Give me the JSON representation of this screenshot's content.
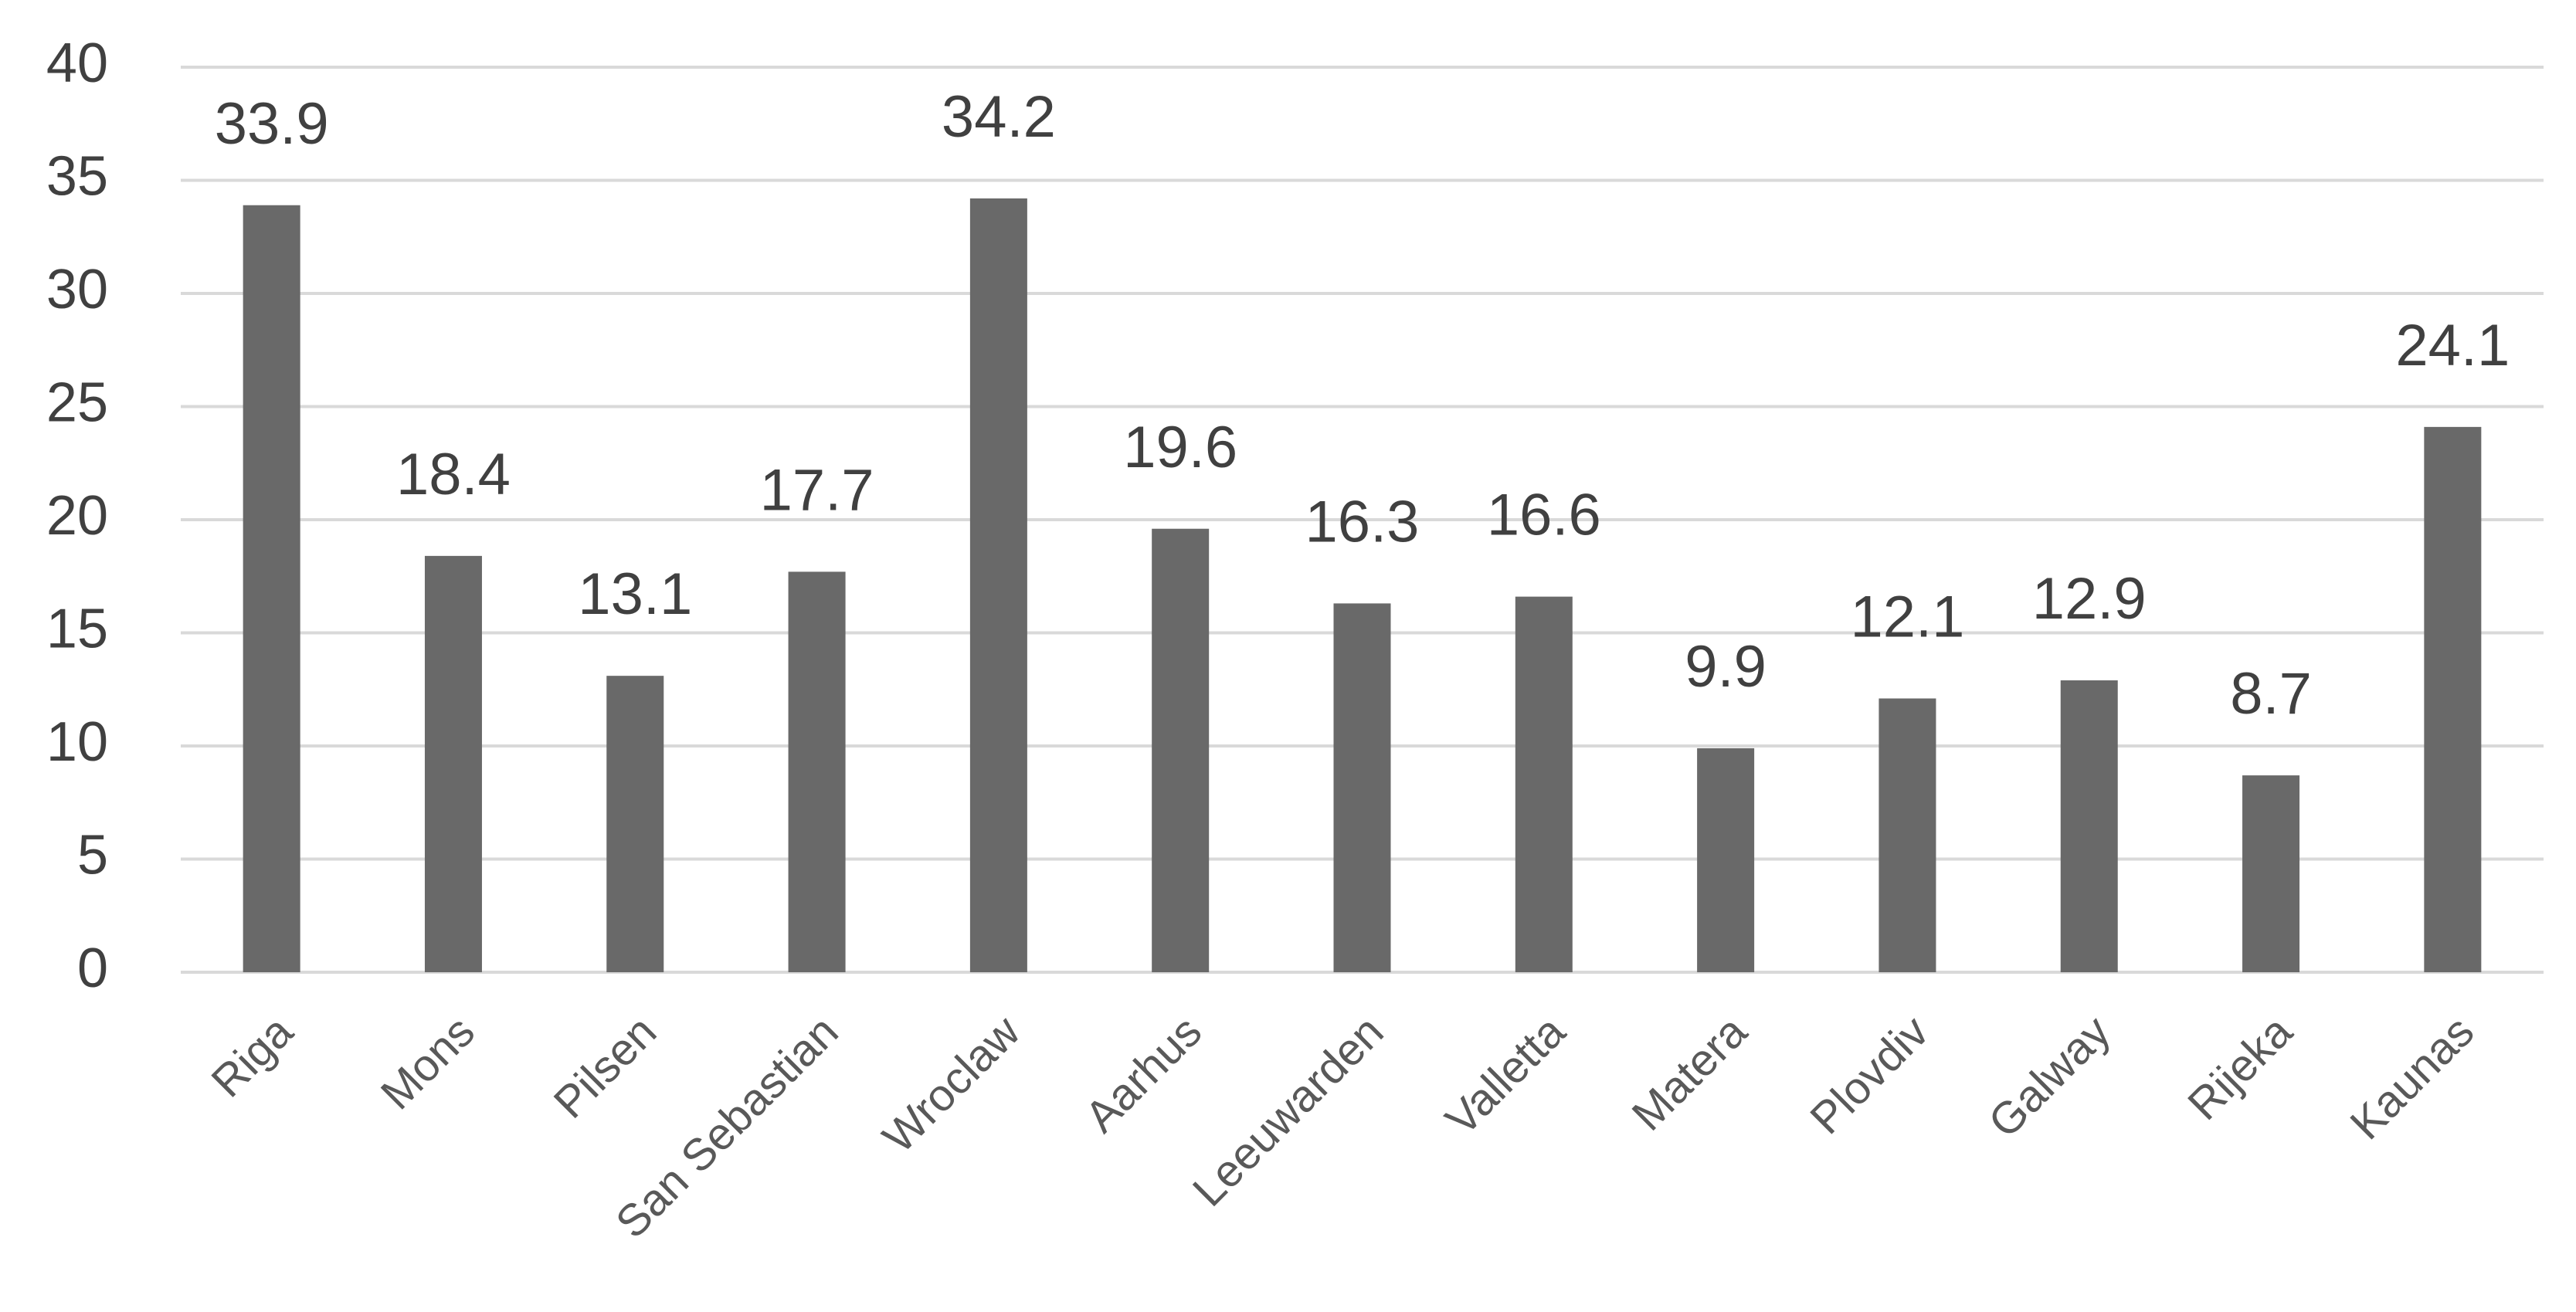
{
  "chart_data": {
    "type": "bar",
    "categories": [
      "Riga",
      "Mons",
      "Pilsen",
      "San Sebastian",
      "Wroclaw",
      "Aarhus",
      "Leeuwarden",
      "Valletta",
      "Matera",
      "Plovdiv",
      "Galway",
      "Rijeka",
      "Kaunas"
    ],
    "values": [
      33.9,
      18.4,
      13.1,
      17.7,
      34.2,
      19.6,
      16.3,
      16.6,
      9.9,
      12.1,
      12.9,
      8.7,
      24.1
    ],
    "color": "#696969",
    "ylim": [
      0,
      40
    ],
    "yticks": [
      0,
      5,
      10,
      15,
      20,
      25,
      30,
      35,
      40
    ],
    "grid": true
  }
}
